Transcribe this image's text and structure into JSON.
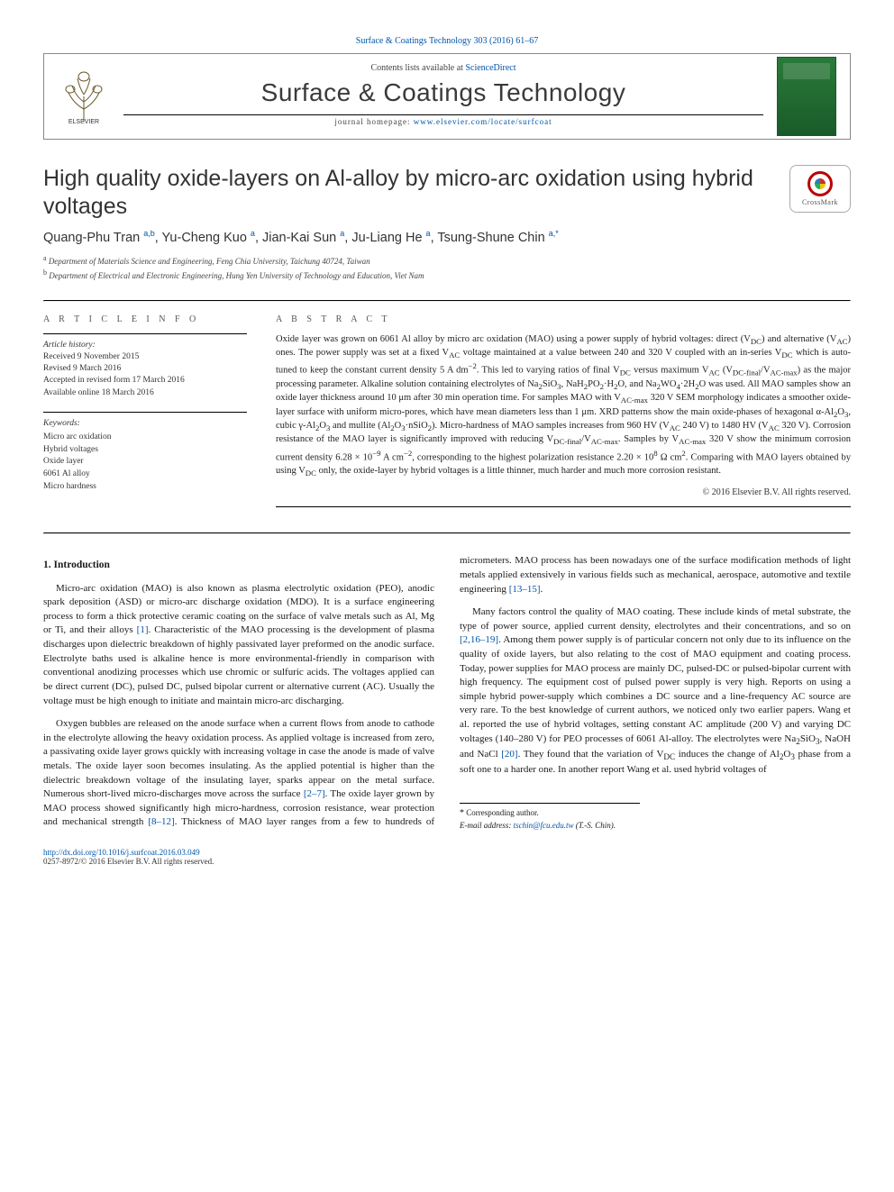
{
  "journal_ref": {
    "text": "Surface & Coatings Technology 303 (2016) 61–67",
    "link_text": "Surface & Coatings Technology 303 (2016) 61–67"
  },
  "header": {
    "contents_prefix": "Contents lists available at ",
    "contents_link": "ScienceDirect",
    "journal_title": "Surface & Coatings Technology",
    "homepage_prefix": "journal homepage: ",
    "homepage_link": "www.elsevier.com/locate/surfcoat",
    "elsevier_label": "ELSEVIER"
  },
  "crossmark": {
    "label": "CrossMark"
  },
  "title": "High quality oxide-layers on Al-alloy by micro-arc oxidation using hybrid voltages",
  "authors_html": "Quang-Phu Tran <sup>a,b</sup>, Yu-Cheng Kuo <sup>a</sup>, Jian-Kai Sun <sup>a</sup>, Ju-Liang He <sup>a</sup>, Tsung-Shune Chin <sup>a,*</sup>",
  "affiliations": [
    {
      "mark": "a",
      "text": "Department of Materials Science and Engineering, Feng Chia University, Taichung 40724, Taiwan"
    },
    {
      "mark": "b",
      "text": "Department of Electrical and Electronic Engineering, Hung Yen University of Technology and Education, Viet Nam"
    }
  ],
  "sect_labels": {
    "info": "A R T I C L E  I N F O",
    "abstract": "A B S T R A C T"
  },
  "history": {
    "label": "Article history:",
    "lines": [
      "Received 9 November 2015",
      "Revised 9 March 2016",
      "Accepted in revised form 17 March 2016",
      "Available online 18 March 2016"
    ]
  },
  "keywords": {
    "label": "Keywords:",
    "items": [
      "Micro arc oxidation",
      "Hybrid voltages",
      "Oxide layer",
      "6061 Al alloy",
      "Micro hardness"
    ]
  },
  "abstract": "Oxide layer was grown on 6061 Al alloy by micro arc oxidation (MAO) using a power supply of hybrid voltages: direct (V<sub>DC</sub>) and alternative (V<sub>AC</sub>) ones. The power supply was set at a fixed V<sub>AC</sub> voltage maintained at a value between 240 and 320 V coupled with an in-series V<sub>DC</sub> which is auto-tuned to keep the constant current density 5 A dm<sup>−2</sup>. This led to varying ratios of final V<sub>DC</sub> versus maximum V<sub>AC</sub> (V<sub>DC-final</sub>/V<sub>AC-max</sub>) as the major processing parameter. Alkaline solution containing electrolytes of Na<sub>2</sub>SiO<sub>3</sub>, NaH<sub>2</sub>PO<sub>2</sub>·H<sub>2</sub>O, and Na<sub>2</sub>WO<sub>4</sub>·2H<sub>2</sub>O was used. All MAO samples show an oxide layer thickness around 10 μm after 30 min operation time. For samples MAO with V<sub>AC-max</sub> 320 V SEM morphology indicates a smoother oxide-layer surface with uniform micro-pores, which have mean diameters less than 1 μm. XRD patterns show the main oxide-phases of hexagonal α-Al<sub>2</sub>O<sub>3</sub>, cubic γ-Al<sub>2</sub>O<sub>3</sub> and mullite (Al<sub>2</sub>O<sub>3</sub>·nSiO<sub>2</sub>). Micro-hardness of MAO samples increases from 960 HV (V<sub>AC</sub> 240 V) to 1480 HV (V<sub>AC</sub> 320 V). Corrosion resistance of the MAO layer is significantly improved with reducing V<sub>DC-final</sub>/V<sub>AC-max</sub>. Samples by V<sub>AC-max</sub> 320 V show the minimum corrosion current density 6.28 × 10<sup>−9</sup> A cm<sup>−2</sup>, corresponding to the highest polarization resistance 2.20 × 10<sup>8</sup> Ω cm<sup>2</sup>. Comparing with MAO layers obtained by using V<sub>DC</sub> only, the oxide-layer by hybrid voltages is a little thinner, much harder and much more corrosion resistant.",
  "copyright": "© 2016 Elsevier B.V. All rights reserved.",
  "section_heading": "1. Introduction",
  "body_paragraphs": [
    "Micro-arc oxidation (MAO) is also known as plasma electrolytic oxidation (PEO), anodic spark deposition (ASD) or micro-arc discharge oxidation (MDO). It is a surface engineering process to form a thick protective ceramic coating on the surface of valve metals such as Al, Mg or Ti, and their alloys <a>[1]</a>. Characteristic of the MAO processing is the development of plasma discharges upon dielectric breakdown of highly passivated layer preformed on the anodic surface. Electrolyte baths used is alkaline hence is more environmental-friendly in comparison with conventional anodizing processes which use chromic or sulfuric acids. The voltages applied can be direct current (DC), pulsed DC, pulsed bipolar current or alternative current (AC). Usually the voltage must be high enough to initiate and maintain micro-arc discharging.",
    "Oxygen bubbles are released on the anode surface when a current flows from anode to cathode in the electrolyte allowing the heavy oxidation process. As applied voltage is increased from zero, a passivating oxide layer grows quickly with increasing voltage in case the anode is made of valve metals. The oxide layer soon becomes insulating. As the applied potential is higher than the dielectric breakdown voltage of the insulating layer, sparks appear on the metal surface. Numerous short-lived micro-discharges move across the surface <a>[2–7]</a>. The oxide layer grown by MAO process showed significantly high micro-hardness, corrosion resistance, wear protection and mechanical strength <a>[8–12]</a>. Thickness of MAO layer ranges from a few to hundreds of micrometers. MAO process has been nowadays one of the surface modification methods of light metals applied extensively in various fields such as mechanical, aerospace, automotive and textile engineering <a>[13–15]</a>.",
    "Many factors control the quality of MAO coating. These include kinds of metal substrate, the type of power source, applied current density, electrolytes and their concentrations, and so on <a>[2,16–19]</a>. Among them power supply is of particular concern not only due to its influence on the quality of oxide layers, but also relating to the cost of MAO equipment and coating process. Today, power supplies for MAO process are mainly DC, pulsed-DC or pulsed-bipolar current with high frequency. The equipment cost of pulsed power supply is very high. Reports on using a simple hybrid power-supply which combines a DC source and a line-frequency AC source are very rare. To the best knowledge of current authors, we noticed only two earlier papers. Wang et al. reported the use of hybrid voltages, setting constant AC amplitude (200 V) and varying DC voltages (140–280 V) for PEO processes of 6061 Al-alloy. The electrolytes were Na<sub>2</sub>SiO<sub>3</sub>, NaOH and NaCl <a>[20]</a>. They found that the variation of V<sub>DC</sub> induces the change of Al<sub>2</sub>O<sub>3</sub> phase from a soft one to a harder one. In another report Wang et al. used hybrid voltages of"
  ],
  "footnote": {
    "corresponding": "Corresponding author.",
    "email_label": "E-mail address:",
    "email": "tschin@fcu.edu.tw",
    "email_person": "(T.-S. Chin)."
  },
  "footer": {
    "doi": "http://dx.doi.org/10.1016/j.surfcoat.2016.03.049",
    "issn_line": "0257-8972/© 2016 Elsevier B.V. All rights reserved."
  },
  "colors": {
    "link": "#0055aa",
    "text": "#1a1a1a",
    "cover_top": "#2a7a3a",
    "cover_bottom": "#1a5a2a"
  }
}
